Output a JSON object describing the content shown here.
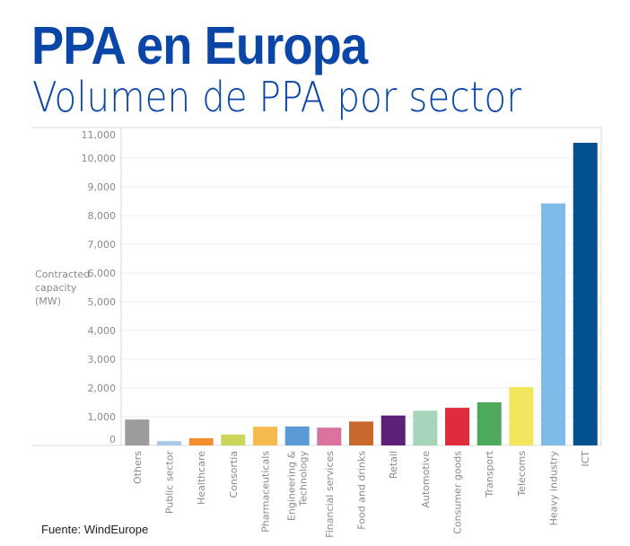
{
  "header": {
    "title": "PPA en Europa",
    "subtitle": "Volumen de PPA por sector"
  },
  "footer": {
    "source": "Fuente: WindEurope"
  },
  "colors": {
    "title": "#0a45a8",
    "axis_text": "#8a8a8a",
    "gridline": "#eeeeee",
    "axis_line": "#d9d9d9"
  },
  "chart_data": {
    "type": "bar",
    "title": "Volumen de PPA por sector",
    "xlabel": "",
    "ylabel": "Contracted capacity (MW)",
    "ylabel_lines": [
      "Contracted",
      "capacity",
      "(MW)"
    ],
    "ylim": [
      0,
      11000
    ],
    "yticks": [
      0,
      1000,
      2000,
      3000,
      4000,
      5000,
      6000,
      7000,
      8000,
      9000,
      10000,
      11000
    ],
    "ytick_labels": [
      "0",
      "1,000",
      "2,000",
      "3,000",
      "4,000",
      "5,000",
      "6,000",
      "7,000",
      "8,000",
      "9,000",
      "10,000",
      "11,000"
    ],
    "grid": true,
    "categories": [
      "Others",
      "Public sector",
      "Healthcare",
      "Consortia",
      "Pharmaceuticals",
      "Engineering & Technology",
      "Financial services",
      "Food and drinks",
      "Retail",
      "Automotive",
      "Consumer goods",
      "Transport",
      "Telecoms",
      "Heavy industry",
      "ICT"
    ],
    "category_label_lines": [
      [
        "Others"
      ],
      [
        "Public sector"
      ],
      [
        "Healthcare"
      ],
      [
        "Consortia"
      ],
      [
        "Pharmaceuticals"
      ],
      [
        "Engineering &",
        "Technology"
      ],
      [
        "Financial services"
      ],
      [
        "Food and drinks"
      ],
      [
        "Retail"
      ],
      [
        "Automotive"
      ],
      [
        "Consumer goods"
      ],
      [
        "Transport"
      ],
      [
        "Telecoms"
      ],
      [
        "Heavy industry"
      ],
      [
        "ICT"
      ]
    ],
    "values": [
      900,
      150,
      250,
      380,
      650,
      660,
      620,
      830,
      1040,
      1210,
      1310,
      1500,
      2030,
      8420,
      10530
    ],
    "bar_colors": [
      "#9b9b9b",
      "#a9cbe8",
      "#f28e2b",
      "#c9d65a",
      "#f6b94c",
      "#5b9bd5",
      "#d9729c",
      "#c8682f",
      "#5c1f7a",
      "#a6d5b9",
      "#e12b3d",
      "#4ea95c",
      "#f2e65f",
      "#7dbce8",
      "#03508f"
    ]
  }
}
